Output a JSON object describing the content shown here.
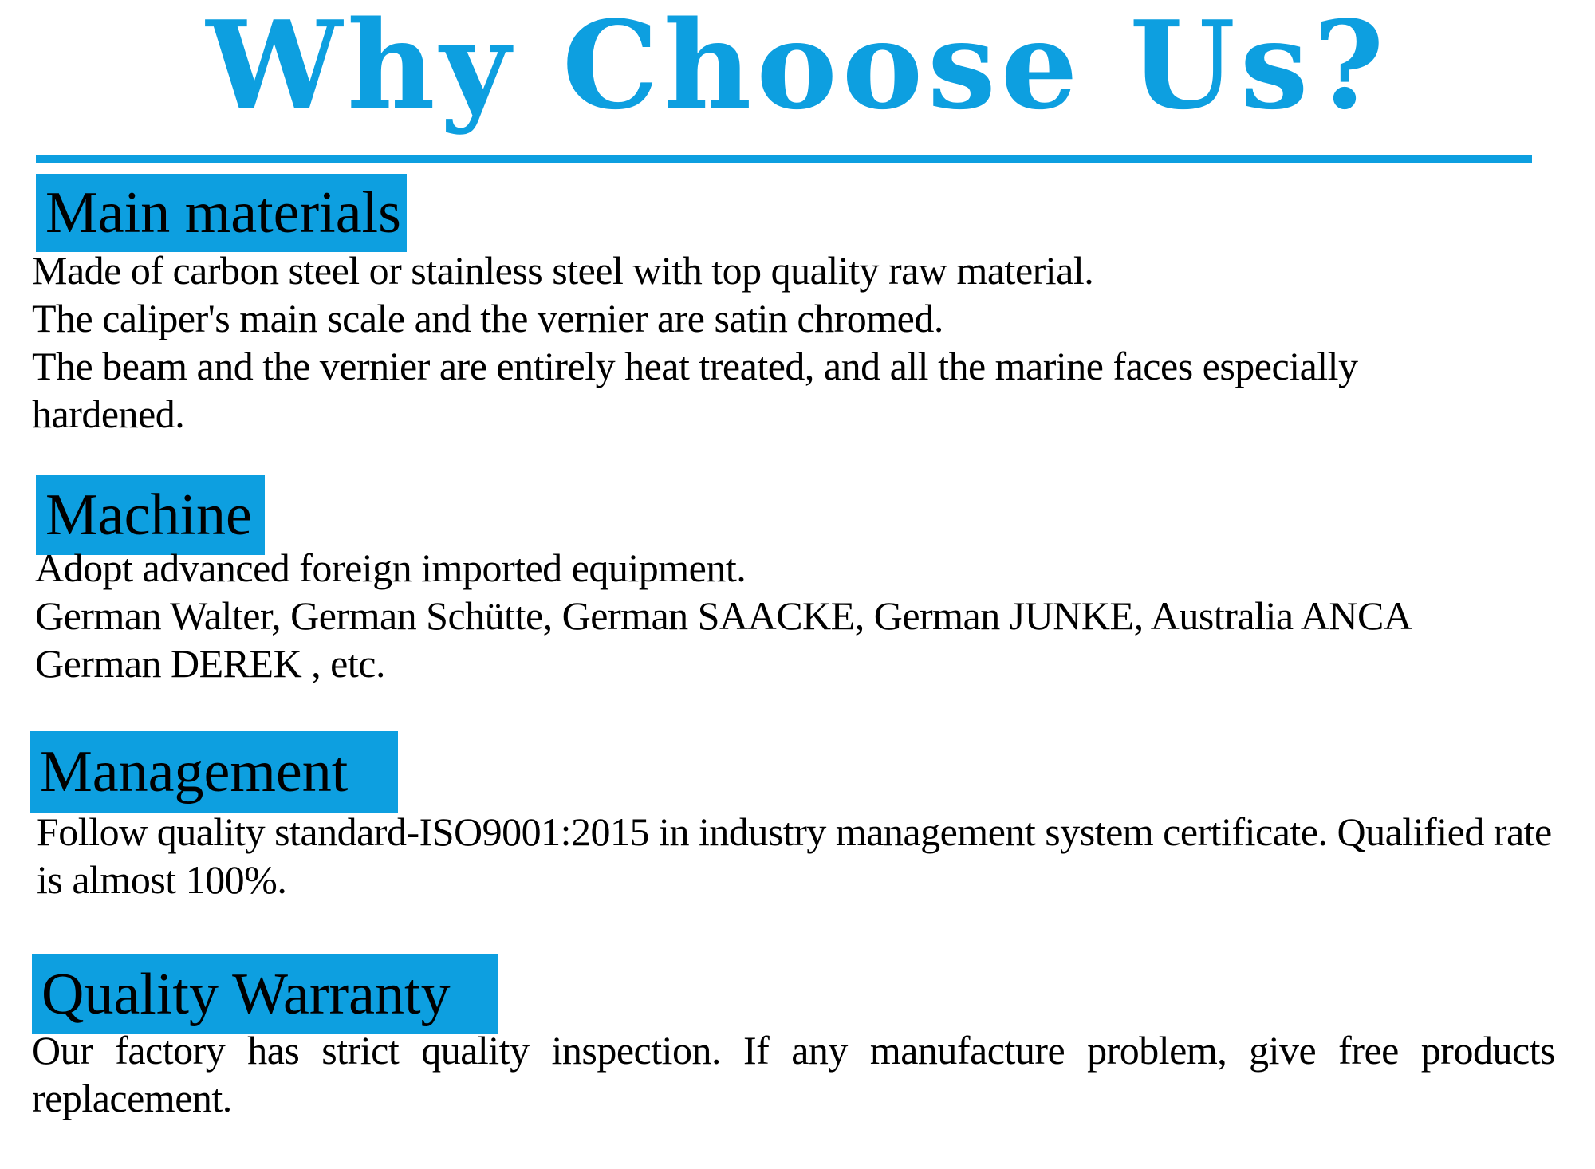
{
  "page": {
    "title": "Why Choose Us?",
    "accent_color": "#0d9fe0",
    "text_color": "#000000",
    "background_color": "#ffffff"
  },
  "sections": [
    {
      "heading": "Main materials",
      "body": "Made of carbon steel or stainless steel with top quality raw material.\nThe caliper's main scale and the vernier are satin chromed.\nThe beam and the vernier are entirely heat treated, and all the marine faces especially\nhardened."
    },
    {
      "heading": "Machine",
      "body": "Adopt advanced foreign imported equipment.\nGerman Walter, German Schütte, German SAACKE, German JUNKE, Australia ANCA\nGerman DEREK , etc."
    },
    {
      "heading": "Management",
      "body": "Follow quality standard-ISO9001:2015 in industry management system certificate. Qualified rate\nis almost 100%."
    },
    {
      "heading": "Quality Warranty",
      "body": "Our factory has strict quality inspection. If any manufacture problem, give free products\nreplacement."
    }
  ]
}
